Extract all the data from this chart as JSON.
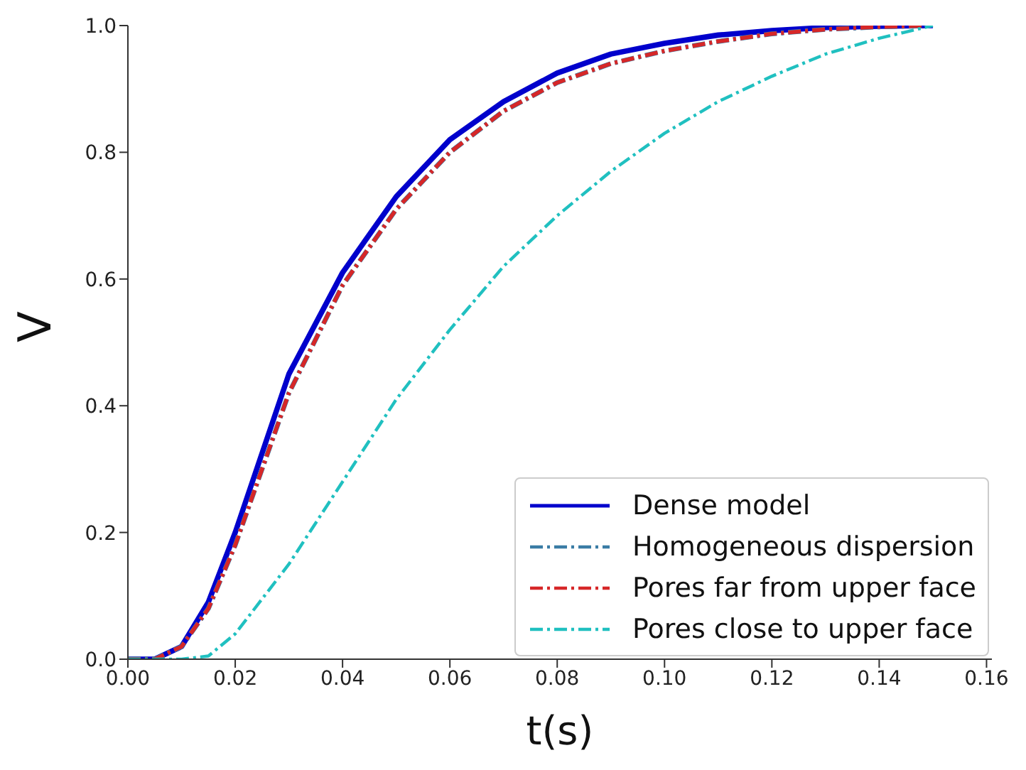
{
  "chart_data": {
    "type": "line",
    "xlabel": "t(s)",
    "ylabel": "V",
    "x": [
      0,
      0.005,
      0.01,
      0.015,
      0.02,
      0.03,
      0.04,
      0.05,
      0.06,
      0.07,
      0.08,
      0.09,
      0.1,
      0.11,
      0.12,
      0.13,
      0.14,
      0.15
    ],
    "series": [
      {
        "name": "Dense model",
        "color": "#0000cc",
        "line_style": "solid",
        "values": [
          0,
          0,
          0.02,
          0.09,
          0.2,
          0.45,
          0.61,
          0.73,
          0.82,
          0.88,
          0.925,
          0.955,
          0.972,
          0.985,
          0.992,
          0.997,
          0.999,
          1.0
        ]
      },
      {
        "name": "Homogeneous dispersion",
        "color": "#3a7ca5",
        "line_style": "dashdot",
        "values": [
          0,
          0,
          0.02,
          0.08,
          0.18,
          0.42,
          0.59,
          0.71,
          0.8,
          0.865,
          0.91,
          0.94,
          0.96,
          0.975,
          0.987,
          0.994,
          0.998,
          1.0
        ]
      },
      {
        "name": "Pores far from upper face",
        "color": "#d62728",
        "line_style": "dashdot",
        "values": [
          0,
          0,
          0.02,
          0.08,
          0.18,
          0.42,
          0.59,
          0.71,
          0.8,
          0.865,
          0.91,
          0.94,
          0.96,
          0.975,
          0.987,
          0.994,
          0.998,
          1.0
        ]
      },
      {
        "name": "Pores close to upper face",
        "color": "#20c0c0",
        "line_style": "dashdot",
        "values": [
          0,
          0,
          0,
          0.005,
          0.04,
          0.15,
          0.28,
          0.41,
          0.52,
          0.62,
          0.7,
          0.77,
          0.83,
          0.88,
          0.92,
          0.955,
          0.98,
          1.0
        ]
      }
    ],
    "xlim": [
      0,
      0.161
    ],
    "ylim": [
      0,
      1
    ],
    "xticks": [
      {
        "value": 0,
        "label": "0.00"
      },
      {
        "value": 0.02,
        "label": "0.02"
      },
      {
        "value": 0.04,
        "label": "0.04"
      },
      {
        "value": 0.06,
        "label": "0.06"
      },
      {
        "value": 0.08,
        "label": "0.08"
      },
      {
        "value": 0.1,
        "label": "0.10"
      },
      {
        "value": 0.12,
        "label": "0.12"
      },
      {
        "value": 0.14,
        "label": "0.14"
      },
      {
        "value": 0.16,
        "label": "0.16"
      }
    ],
    "yticks": [
      {
        "value": 0,
        "label": "0.0"
      },
      {
        "value": 0.2,
        "label": "0.2"
      },
      {
        "value": 0.4,
        "label": "0.4"
      },
      {
        "value": 0.6,
        "label": "0.6"
      },
      {
        "value": 0.8,
        "label": "0.8"
      },
      {
        "value": 1,
        "label": "1.0"
      }
    ],
    "grid": false,
    "legend": "bottom right",
    "marker": "none"
  }
}
